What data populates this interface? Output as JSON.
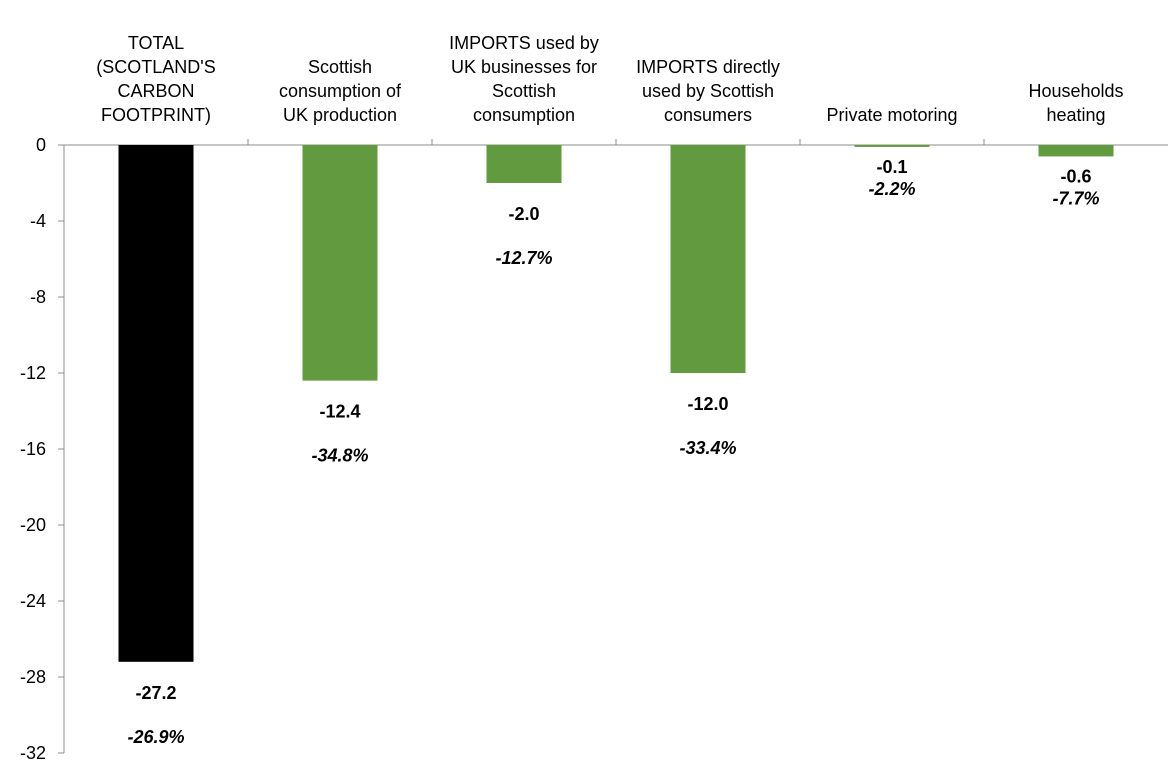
{
  "chart_data": {
    "type": "bar",
    "categories": [
      [
        "TOTAL",
        "(SCOTLAND'S",
        "CARBON",
        "FOOTPRINT)"
      ],
      [
        "Scottish",
        "consumption of",
        "UK production"
      ],
      [
        "IMPORTS used by",
        "UK businesses for",
        "Scottish",
        "consumption"
      ],
      [
        "IMPORTS directly",
        "used by Scottish",
        "consumers"
      ],
      [
        "Private motoring"
      ],
      [
        "Households",
        "heating"
      ]
    ],
    "values": [
      -27.2,
      -12.4,
      -2.0,
      -12.0,
      -0.1,
      -0.6
    ],
    "value_labels": [
      "-27.2",
      "-12.4",
      "-2.0",
      "-12.0",
      "-0.1",
      "-0.6"
    ],
    "percent_labels": [
      "-26.9%",
      "-34.8%",
      "-12.7%",
      "-33.4%",
      "-2.2%",
      "-7.7%"
    ],
    "colors": [
      "#000000",
      "#629b3f",
      "#629b3f",
      "#629b3f",
      "#629b3f",
      "#629b3f"
    ],
    "title": "",
    "xlabel": "",
    "ylabel": "",
    "ylim": [
      -32,
      0
    ],
    "yticks": [
      0,
      -4,
      -8,
      -12,
      -16,
      -20,
      -24,
      -28,
      -32
    ],
    "grid": false,
    "legend": "none"
  }
}
